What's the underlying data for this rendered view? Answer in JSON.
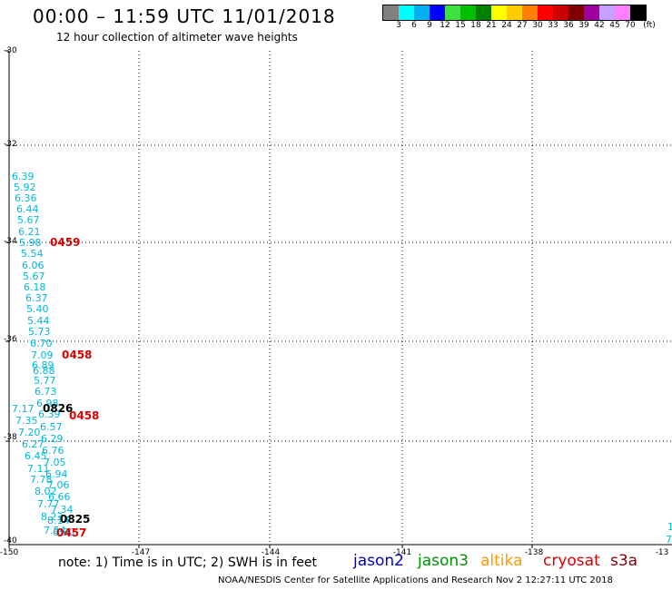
{
  "title": "00:00 – 11:59 UTC 11/01/2018",
  "subtitle": "12 hour collection of altimeter wave heights",
  "scale": {
    "labels": [
      "3",
      "6",
      "9",
      "12",
      "15",
      "18",
      "21",
      "24",
      "27",
      "30",
      "33",
      "36",
      "39",
      "42",
      "45",
      "70"
    ],
    "unit": "(ft)",
    "colors": [
      "#808080",
      "#00ffff",
      "#00b0f0",
      "#0000ff",
      "#40e040",
      "#00c000",
      "#008000",
      "#ffff00",
      "#ffcc00",
      "#ff8000",
      "#ff0000",
      "#cc0000",
      "#800000",
      "#a000a0",
      "#c8a0ff",
      "#ff80ff",
      "#000000"
    ]
  },
  "axes": {
    "y_labels": [
      "-30",
      "-32",
      "-34",
      "-36",
      "-38",
      "-40"
    ],
    "x_labels": [
      "-150",
      "-147",
      "-144",
      "-141",
      "-138",
      "-13"
    ]
  },
  "swh_values": [
    "6.39",
    "5.92",
    "6.36",
    "6.44",
    "5.67",
    "6.21",
    "5.98",
    "5.54",
    "6.06",
    "5.67",
    "6.18",
    "6.37",
    "5.40",
    "5.44",
    "5.73",
    "6.70",
    "7.09",
    "6.89",
    "6.88",
    "5.77",
    "6.73",
    "6.98",
    "7.17",
    "7.35",
    "6.39",
    "6.57",
    "7.20",
    "6.29",
    "6.27",
    "6.76",
    "6.45",
    "7.05",
    "7.11",
    "6.94",
    "7.78",
    "7.06",
    "8.02",
    "6.66",
    "7.77",
    "7.34",
    "8.23",
    "8.14",
    "7.54",
    "6.90"
  ],
  "swh_right": [
    "1",
    "7"
  ],
  "time_labels": [
    {
      "text": "0459",
      "color": "#dd0000"
    },
    {
      "text": "0458",
      "color": "#dd0000"
    },
    {
      "text": "0826",
      "color": "#000000"
    },
    {
      "text": "0458",
      "color": "#dd0000"
    },
    {
      "text": "0825",
      "color": "#000000"
    },
    {
      "text": "0457",
      "color": "#dd0000"
    }
  ],
  "note": "note: 1) Time is in UTC; 2) SWH is in feet",
  "satellites": [
    {
      "name": "jason2",
      "color": "#0000cc"
    },
    {
      "name": "jason3",
      "color": "#009000"
    },
    {
      "name": "altika",
      "color": "#ff9900"
    },
    {
      "name": "cryosat",
      "color": "#dd0000"
    },
    {
      "name": "s3a",
      "color": "#880000"
    }
  ],
  "footer": "NOAA/NESDIS Center for Satellite Applications and Research    Nov  2 12:27:11 UTC 2018"
}
